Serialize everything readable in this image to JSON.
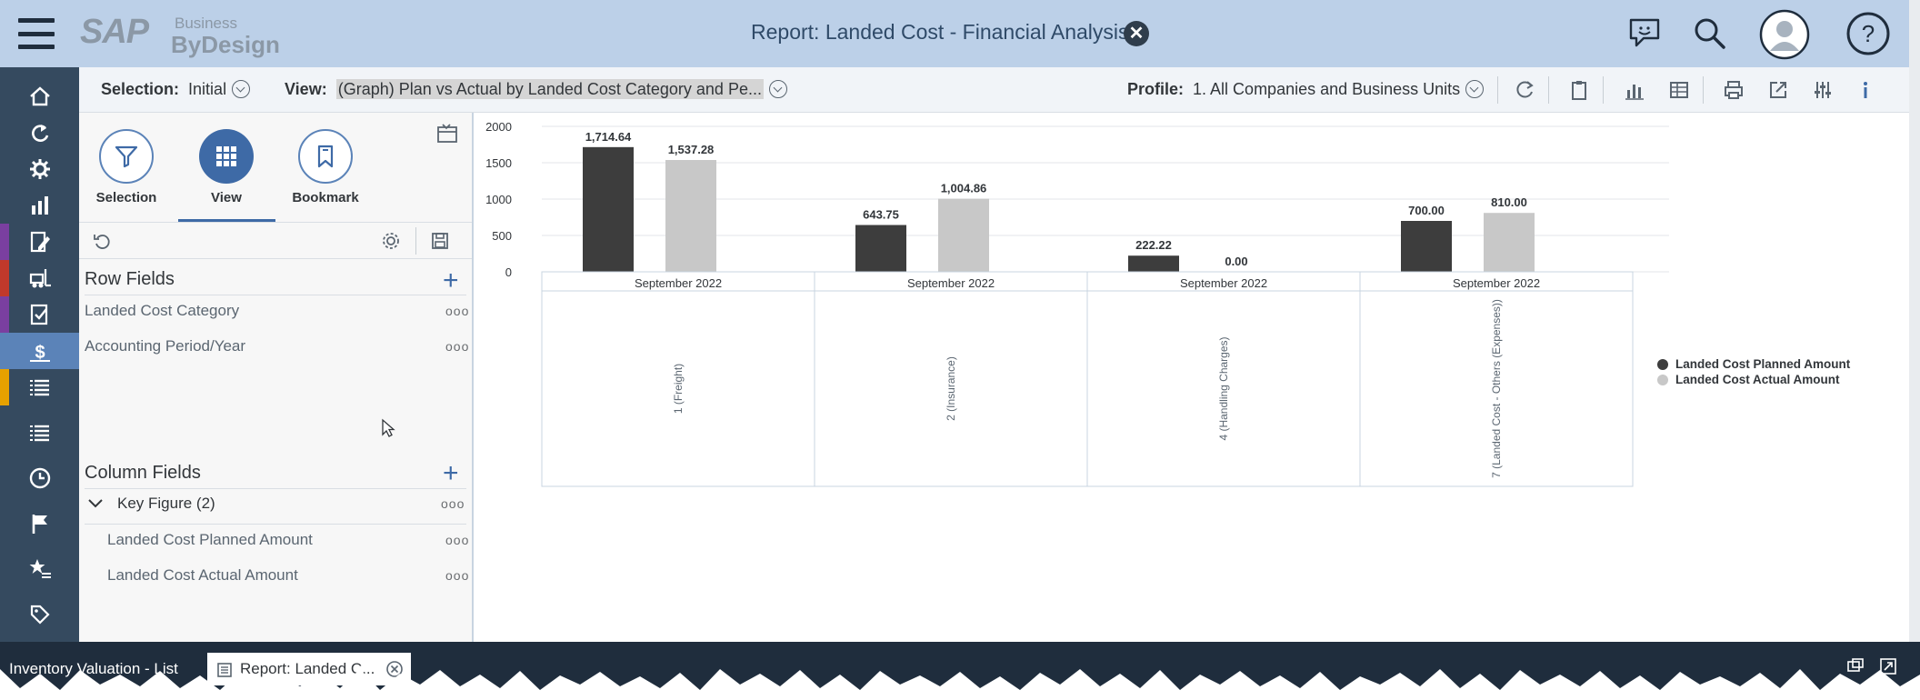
{
  "header": {
    "logo_brand": "SAP",
    "logo_line1": "Business",
    "logo_line2": "ByDesign",
    "title": "Report: Landed Cost - Financial Analysis",
    "close_symbol": "✕"
  },
  "toolbar": {
    "selection_label": "Selection:",
    "selection_value": "Initial",
    "view_label": "View:",
    "view_value": "(Graph) Plan vs Actual by Landed Cost Category and Pe...",
    "profile_label": "Profile:",
    "profile_value": "1. All Companies and Business Units"
  },
  "panel": {
    "buttons": [
      {
        "label": "Selection"
      },
      {
        "label": "View"
      },
      {
        "label": "Bookmark"
      }
    ],
    "row_fields_title": "Row Fields",
    "row_fields": [
      "Landed Cost Category",
      "Accounting Period/Year"
    ],
    "column_fields_title": "Column Fields",
    "key_figure_group": "Key Figure (2)",
    "column_fields": [
      "Landed Cost Planned Amount",
      "Landed Cost Actual Amount"
    ],
    "dots": "ooo"
  },
  "taskbar": {
    "tabs": [
      {
        "label": "Inventory Valuation - List"
      },
      {
        "label": "Report: Landed C..."
      }
    ]
  },
  "colors": {
    "planned": "#3d3d3d",
    "actual": "#c8c8c8",
    "accent": "#3e6aa6",
    "header_bg": "#bcd0e8",
    "rail_bg": "#354a5f"
  },
  "chart_data": {
    "type": "bar",
    "categories": [
      "September 2022",
      "September 2022",
      "September 2022",
      "September 2022"
    ],
    "group_labels": [
      "1 (Freight)",
      "2 (Insurance)",
      "4 (Handling Charges)",
      "7 (Landed Cost - Others (Expenses))"
    ],
    "series": [
      {
        "name": "Landed Cost Planned Amount",
        "values": [
          1714.64,
          643.75,
          222.22,
          700.0
        ],
        "labels": [
          "1,714.64",
          "643.75",
          "222.22",
          "700.00"
        ]
      },
      {
        "name": "Landed Cost Actual Amount",
        "values": [
          1537.28,
          1004.86,
          0.0,
          810.0
        ],
        "labels": [
          "1,537.28",
          "1,004.86",
          "0.00",
          "810.00"
        ]
      }
    ],
    "yticks": [
      "0",
      "500",
      "1000",
      "1500",
      "2000"
    ],
    "ylim": [
      0,
      2000
    ],
    "grid": true,
    "legend": "right"
  }
}
